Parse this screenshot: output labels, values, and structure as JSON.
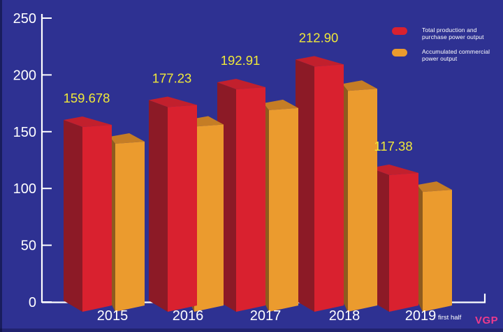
{
  "chart_data": {
    "type": "bar",
    "title": "",
    "xlabel": "",
    "ylabel": "",
    "categories": [
      "2015",
      "2016",
      "2017",
      "2018",
      "2019"
    ],
    "category_suffixes": [
      "",
      "",
      "",
      "",
      "first half"
    ],
    "y_ticks": [
      0,
      50,
      100,
      150,
      200,
      250
    ],
    "ylim": [
      0,
      250
    ],
    "grid": false,
    "legend_position": "top-right",
    "series": [
      {
        "name": "Total production and purchase power output",
        "legend_lines": [
          "Total production and",
          "purchase power output"
        ],
        "values": [
          159.678,
          177.23,
          192.91,
          212.9,
          117.38
        ],
        "value_labels": [
          "159.678",
          "177.23",
          "192.91",
          "212.90",
          "117.38"
        ],
        "colors": {
          "front": "#d9212f",
          "top": "#c2202d",
          "side": "#8c1a26"
        }
      },
      {
        "name": "Accumulated commercial power output",
        "legend_lines": [
          "Accumulated commercial",
          "power output"
        ],
        "values": [
          145,
          160,
          174.5,
          191.5,
          102.5
        ],
        "value_labels": [
          "",
          "",
          "",
          "",
          ""
        ],
        "colors": {
          "front": "#eb9b2e",
          "top": "#c57d25",
          "side": "#8e5b1e"
        }
      }
    ]
  },
  "watermark": {
    "text": "VGP",
    "color": "#ee3a8c"
  },
  "palette": {
    "background": "#2e3192",
    "axis": "#ffffff",
    "tick_label": "#ffffff",
    "category_label": "#ffffff",
    "value_label": "#f0e839"
  }
}
